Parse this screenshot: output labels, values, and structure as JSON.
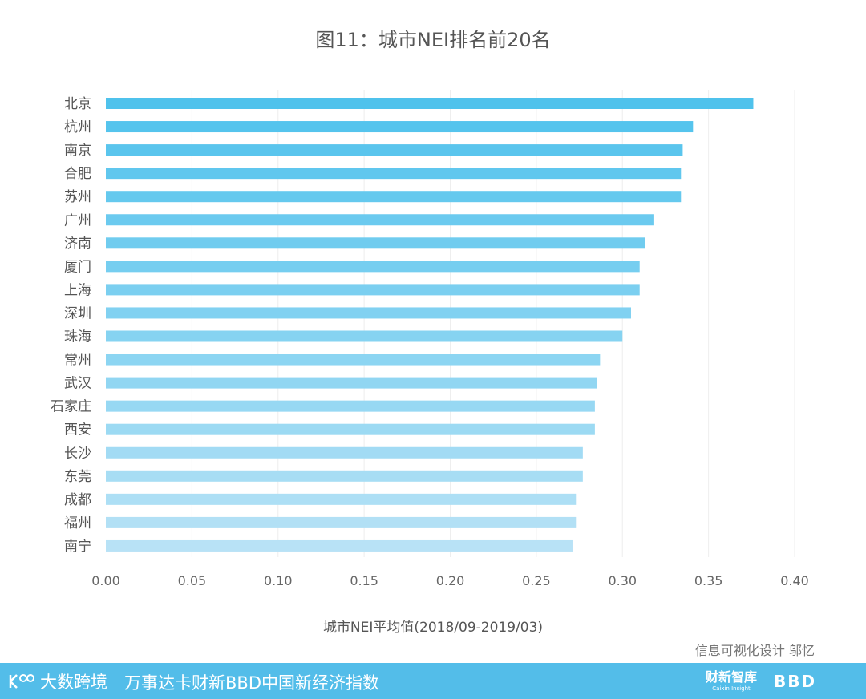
{
  "chart_data": {
    "type": "bar",
    "orientation": "horizontal",
    "title": "图11：城市NEI排名前20名",
    "xlabel": "城市NEI平均值(2018/09-2019/03)",
    "ylabel": "",
    "xlim": [
      0,
      0.4
    ],
    "x_ticks": [
      "0.00",
      "0.05",
      "0.10",
      "0.15",
      "0.20",
      "0.25",
      "0.30",
      "0.35",
      "0.40"
    ],
    "grid": "vertical",
    "categories": [
      "北京",
      "杭州",
      "南京",
      "合肥",
      "苏州",
      "广州",
      "济南",
      "厦门",
      "上海",
      "深圳",
      "珠海",
      "常州",
      "武汉",
      "石家庄",
      "西安",
      "长沙",
      "东莞",
      "成都",
      "福州",
      "南宁"
    ],
    "values": [
      0.376,
      0.341,
      0.335,
      0.334,
      0.334,
      0.318,
      0.313,
      0.31,
      0.31,
      0.305,
      0.3,
      0.287,
      0.285,
      0.284,
      0.284,
      0.277,
      0.277,
      0.273,
      0.273,
      0.271
    ],
    "colors": {
      "start": "#4fc2ec",
      "end": "#b8e2f6"
    }
  },
  "credit": "信息可视化设计 邬忆",
  "footer": {
    "brand": "大数跨境",
    "index_title": "万事达卡财新BBD中国新经济指数",
    "logo_caixin": "财新智库",
    "logo_caixin_sub": "Caixin Insight",
    "logo_bbd": "BBD",
    "background": "#53bde9"
  }
}
